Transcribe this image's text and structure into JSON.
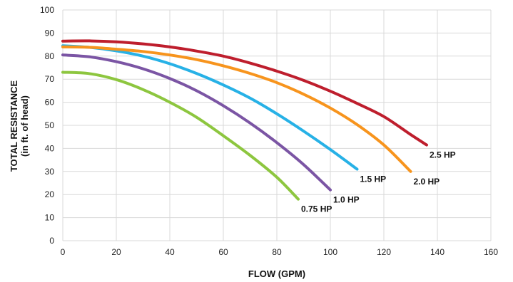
{
  "chart_data": {
    "type": "line",
    "xlabel": "FLOW (GPM)",
    "ylabel_lines": [
      "TOTAL RESISTANCE",
      "(in ft. of head)"
    ],
    "xlim": [
      0,
      160
    ],
    "ylim": [
      0,
      100
    ],
    "xticks": [
      0,
      20,
      40,
      60,
      80,
      100,
      120,
      140,
      160
    ],
    "yticks": [
      0,
      10,
      20,
      30,
      40,
      50,
      60,
      70,
      80,
      90,
      100
    ],
    "grid": true,
    "legend": "inline-at-line-end",
    "series": [
      {
        "name": "0.75 HP",
        "color": "#8dc63f",
        "points": [
          [
            0,
            73
          ],
          [
            10,
            72.4
          ],
          [
            20,
            69.8
          ],
          [
            30,
            65.5
          ],
          [
            40,
            60
          ],
          [
            50,
            53.5
          ],
          [
            60,
            45.5
          ],
          [
            70,
            37
          ],
          [
            80,
            27.5
          ],
          [
            88,
            18
          ]
        ]
      },
      {
        "name": "1.0 HP",
        "color": "#7b55a4",
        "points": [
          [
            0,
            80.5
          ],
          [
            10,
            79.7
          ],
          [
            20,
            77.6
          ],
          [
            30,
            74.5
          ],
          [
            40,
            70.3
          ],
          [
            50,
            65
          ],
          [
            60,
            58.5
          ],
          [
            70,
            51
          ],
          [
            80,
            42.5
          ],
          [
            90,
            33
          ],
          [
            100,
            22
          ]
        ]
      },
      {
        "name": "1.5 HP",
        "color": "#27b1e6",
        "points": [
          [
            0,
            84.5
          ],
          [
            10,
            83.8
          ],
          [
            20,
            82.3
          ],
          [
            30,
            80
          ],
          [
            40,
            76.7
          ],
          [
            50,
            72.5
          ],
          [
            60,
            67.5
          ],
          [
            70,
            61.8
          ],
          [
            80,
            55
          ],
          [
            90,
            47.5
          ],
          [
            100,
            39.5
          ],
          [
            110,
            31
          ]
        ]
      },
      {
        "name": "2.0 HP",
        "color": "#f7941d",
        "points": [
          [
            0,
            84
          ],
          [
            10,
            83.8
          ],
          [
            20,
            83
          ],
          [
            30,
            82
          ],
          [
            40,
            80.5
          ],
          [
            50,
            78.5
          ],
          [
            60,
            75.8
          ],
          [
            70,
            72.5
          ],
          [
            80,
            68.5
          ],
          [
            90,
            63.5
          ],
          [
            100,
            57.5
          ],
          [
            110,
            50.3
          ],
          [
            120,
            41.5
          ],
          [
            130,
            30
          ]
        ]
      },
      {
        "name": "2.5 HP",
        "color": "#be1e2d",
        "points": [
          [
            0,
            86.5
          ],
          [
            10,
            86.6
          ],
          [
            20,
            86.2
          ],
          [
            30,
            85.3
          ],
          [
            40,
            84
          ],
          [
            50,
            82.2
          ],
          [
            60,
            80
          ],
          [
            70,
            77
          ],
          [
            80,
            73.5
          ],
          [
            90,
            69.5
          ],
          [
            100,
            64.8
          ],
          [
            110,
            59.5
          ],
          [
            120,
            53.8
          ],
          [
            130,
            46
          ],
          [
            136,
            41.5
          ]
        ]
      }
    ]
  }
}
